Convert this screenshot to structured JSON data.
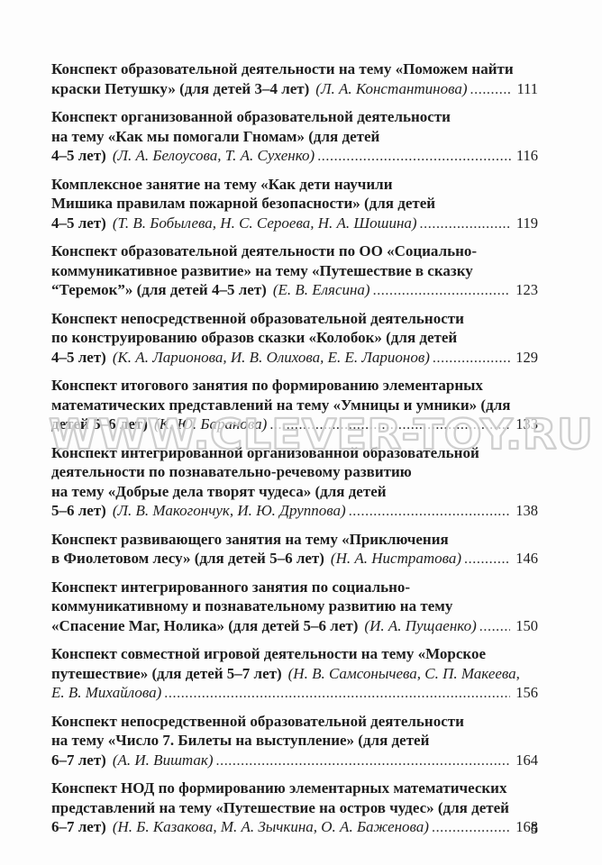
{
  "page": {
    "number": "5"
  },
  "watermark": {
    "text": "WWW.CLEVER-TOY.RU"
  },
  "toc": {
    "entries": [
      {
        "lines": [
          [
            {
              "t": "Конспект образовательной деятельности на тему «Поможем найти",
              "s": "b"
            }
          ],
          [
            {
              "t": "краски Петушку» (для детей 3–4 лет)",
              "s": "b"
            },
            {
              "t": "(Л. А. Константинова)",
              "s": "i"
            }
          ]
        ],
        "page": "111"
      },
      {
        "lines": [
          [
            {
              "t": "Конспект организованной образовательной деятельности",
              "s": "b"
            }
          ],
          [
            {
              "t": "на тему «Как мы помогали Гномам» (для детей",
              "s": "b"
            }
          ],
          [
            {
              "t": "4–5 лет)",
              "s": "b"
            },
            {
              "t": "(Л. А. Белоусова, Т. А. Сухенко)",
              "s": "i"
            }
          ]
        ],
        "page": "116"
      },
      {
        "lines": [
          [
            {
              "t": "Комплексное занятие на тему «Как дети научили",
              "s": "b"
            }
          ],
          [
            {
              "t": "Мишика правилам пожарной безопасности» (для детей",
              "s": "b"
            }
          ],
          [
            {
              "t": "4–5 лет)",
              "s": "b"
            },
            {
              "t": "(Т. В. Бобылева, Н. С. Сероева, Н. А. Шошина)",
              "s": "i"
            }
          ]
        ],
        "page": "119"
      },
      {
        "lines": [
          [
            {
              "t": "Конспект образовательной деятельности по ОО «Социально-",
              "s": "b"
            }
          ],
          [
            {
              "t": "коммуникативное развитие» на тему «Путешествие в сказку",
              "s": "b"
            }
          ],
          [
            {
              "t": "“Теремок”» (для детей 4–5 лет)",
              "s": "b"
            },
            {
              "t": "(Е. В. Елясина)",
              "s": "i"
            }
          ]
        ],
        "page": "123"
      },
      {
        "lines": [
          [
            {
              "t": "Конспект непосредственной образовательной деятельности",
              "s": "b"
            }
          ],
          [
            {
              "t": "по конструированию образов сказки «Колобок» (для детей",
              "s": "b"
            }
          ],
          [
            {
              "t": "4–5 лет)",
              "s": "b"
            },
            {
              "t": "(К. А. Ларионова, И. В. Олихова, Е. Е. Ларионов)",
              "s": "i"
            }
          ]
        ],
        "page": "129"
      },
      {
        "lines": [
          [
            {
              "t": "Конспект итогового занятия по формированию элементарных",
              "s": "b"
            }
          ],
          [
            {
              "t": "математических представлений на тему «Умницы и умники» (для",
              "s": "b"
            }
          ],
          [
            {
              "t": "детей 5–6 лет)",
              "s": "b"
            },
            {
              "t": "(К. Ю. Баранова)",
              "s": "i"
            }
          ]
        ],
        "page": "133"
      },
      {
        "lines": [
          [
            {
              "t": "Конспект интегрированной организованной образовательной",
              "s": "b"
            }
          ],
          [
            {
              "t": "деятельности по познавательно-речевому развитию",
              "s": "b"
            }
          ],
          [
            {
              "t": "на тему «Добрые дела творят чудеса» (для детей",
              "s": "b"
            }
          ],
          [
            {
              "t": "5–6 лет)",
              "s": "b"
            },
            {
              "t": "(Л. В. Макогончук, И. Ю. Друппова)",
              "s": "i"
            }
          ]
        ],
        "page": "138"
      },
      {
        "lines": [
          [
            {
              "t": "Конспект развивающего занятия на тему «Приключения",
              "s": "b"
            }
          ],
          [
            {
              "t": "в Фиолетовом лесу» (для детей 5–6 лет)",
              "s": "b"
            },
            {
              "t": "(Н. А. Нистратова)",
              "s": "i"
            }
          ]
        ],
        "page": "146"
      },
      {
        "lines": [
          [
            {
              "t": "Конспект интегрированного занятия по социально-",
              "s": "b"
            }
          ],
          [
            {
              "t": "коммуникативному и познавательному развитию на тему",
              "s": "b"
            }
          ],
          [
            {
              "t": "«Спасение Маг, Нолика» (для детей 5–6 лет)",
              "s": "b"
            },
            {
              "t": "(И. А. Пущаенко)",
              "s": "i"
            }
          ]
        ],
        "page": "150"
      },
      {
        "lines": [
          [
            {
              "t": "Конспект совместной игровой деятельности на тему «Морское",
              "s": "b"
            }
          ],
          [
            {
              "t": "путешествие» (для детей 5–7 лет)",
              "s": "b"
            },
            {
              "t": "(Н. В. Самсонычева, С. П. Макеева,",
              "s": "i"
            }
          ],
          [
            {
              "t": "Е. В. Михайлова)",
              "s": "i"
            }
          ]
        ],
        "page": "156"
      },
      {
        "lines": [
          [
            {
              "t": "Конспект непосредственной образовательной деятельности",
              "s": "b"
            }
          ],
          [
            {
              "t": "на тему «Число 7. Билеты на выступление» (для детей",
              "s": "b"
            }
          ],
          [
            {
              "t": "6–7 лет)",
              "s": "b"
            },
            {
              "t": "(А. И. Виштак)",
              "s": "i"
            }
          ]
        ],
        "page": "164"
      },
      {
        "lines": [
          [
            {
              "t": "Конспект НОД по формированию элементарных математических",
              "s": "b"
            }
          ],
          [
            {
              "t": "представлений на тему «Путешествие на остров чудес» (для детей",
              "s": "b"
            }
          ],
          [
            {
              "t": "6–7 лет)",
              "s": "b"
            },
            {
              "t": "(Н. Б. Казакова, М. А. Зычкина, О. А. Баженова)",
              "s": "i"
            }
          ]
        ],
        "page": "168"
      }
    ]
  }
}
